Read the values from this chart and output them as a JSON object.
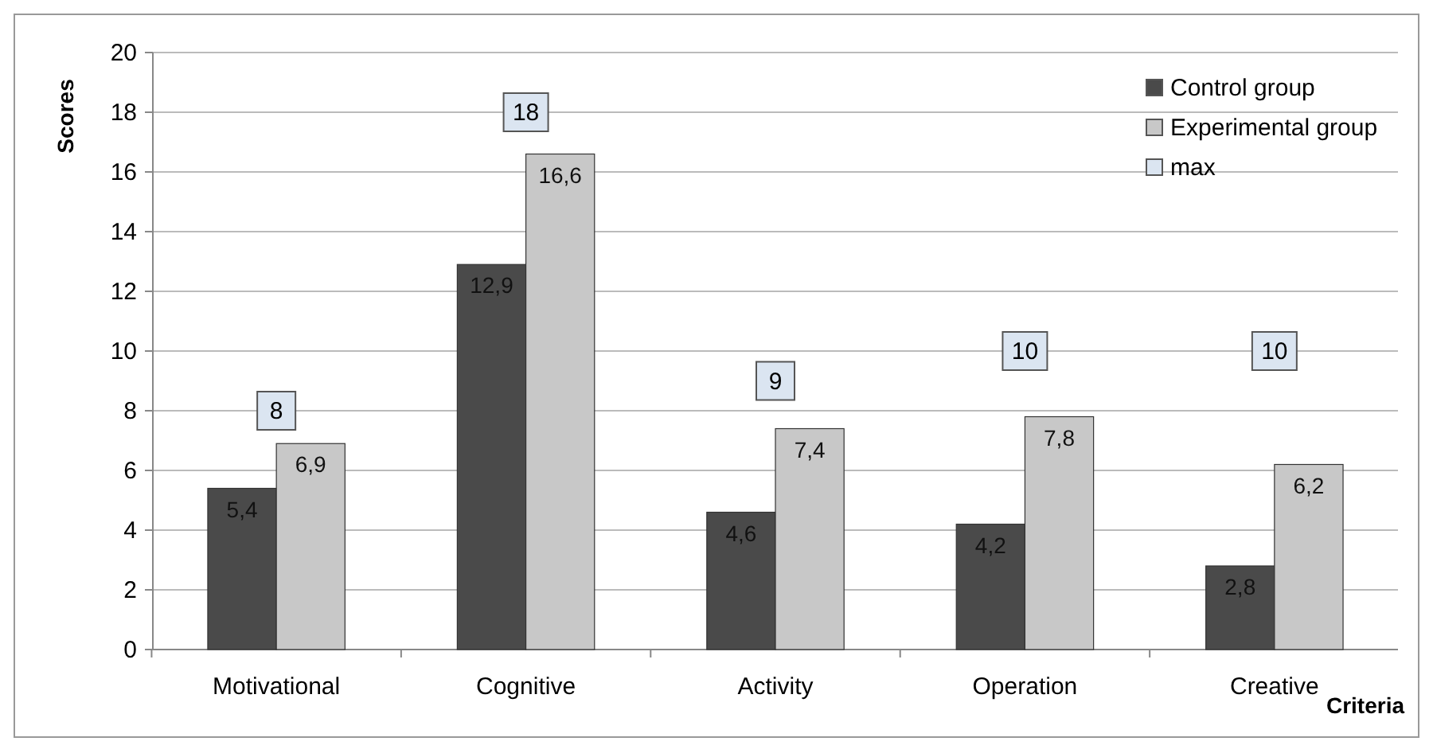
{
  "chart_data": {
    "type": "bar",
    "xlabel": "Criteria",
    "ylabel": "Scores",
    "categories": [
      "Motivational",
      "Cognitive",
      "Activity",
      "Operation",
      "Creative"
    ],
    "series": [
      {
        "name": "Control group",
        "color": "#4a4a4a",
        "values": [
          5.4,
          12.9,
          4.6,
          4.2,
          2.8
        ],
        "value_labels": [
          "5,4",
          "12,9",
          "4,6",
          "4,2",
          "2,8"
        ]
      },
      {
        "name": "Experimental group",
        "color": "#c8c8c8",
        "values": [
          6.9,
          16.6,
          7.4,
          7.8,
          6.2
        ],
        "value_labels": [
          "6,9",
          "16,6",
          "7,4",
          "7,8",
          "6,2"
        ]
      },
      {
        "name": "max",
        "type": "scatter",
        "marker": "square",
        "color": "#dbe5f1",
        "values": [
          8,
          18,
          9,
          10,
          10
        ],
        "value_labels": [
          "8",
          "18",
          "9",
          "10",
          "10"
        ]
      }
    ],
    "ylim": [
      0,
      20
    ],
    "yticks": [
      0,
      2,
      4,
      6,
      8,
      10,
      12,
      14,
      16,
      18,
      20
    ],
    "grid": "y",
    "legend": "top right"
  }
}
